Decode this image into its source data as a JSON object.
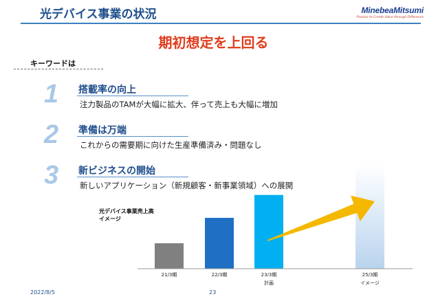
{
  "header": {
    "title": "光デバイス事業の状況",
    "logo_brand": "MinebeaMitsumi",
    "logo_tagline": "Passion to Create Value through Difference"
  },
  "headline": "期初想定を上回る",
  "keywords_label": "キーワードは",
  "points": [
    {
      "number": "1",
      "title": "搭載率の向上",
      "description": "注力製品のTAMが大幅に拡大、伴って売上も大幅に増加"
    },
    {
      "number": "2",
      "title": "準備は万端",
      "description": "これからの需要期に向けた生産準備済み・問題なし"
    },
    {
      "number": "3",
      "title": "新ビジネスの開始",
      "description": "新しいアプリケーション（新規顧客・新事業領域）への展開"
    }
  ],
  "chart_label": [
    "光デバイス事業売上高",
    "イメージ"
  ],
  "chart_data": {
    "type": "bar",
    "title": "光デバイス事業売上高 イメージ",
    "categories": [
      "21/3期",
      "22/3期",
      "23/3期",
      "25/3期"
    ],
    "category_sublabels": [
      "",
      "",
      "計画",
      "イメージ"
    ],
    "values": [
      1.0,
      2.0,
      2.9,
      4.1
    ],
    "colors": [
      "#808080",
      "#1f6fc5",
      "#00b0f0",
      "#c5dcf2"
    ],
    "arrow": "23/3期 → 25/3期 (growth)",
    "arrow_color": "#f5b800",
    "value_axis": "none (relative image)"
  },
  "footer": {
    "date": "2022/8/5",
    "page": "23"
  }
}
